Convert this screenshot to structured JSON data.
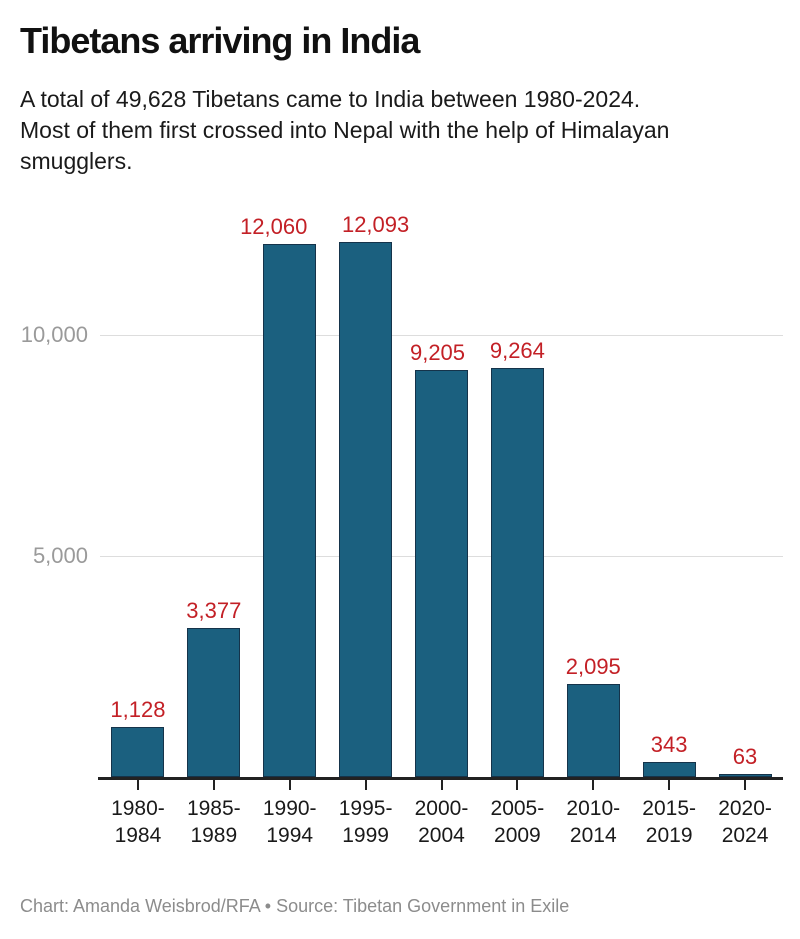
{
  "header": {
    "title": "Tibetans arriving in India",
    "subtitle": "A total of 49,628 Tibetans came to India between 1980-2024.\nMost of them first crossed into Nepal with the help of Himalayan\nsmugglers."
  },
  "footer": {
    "credit": "Chart: Amanda Weisbrod/RFA • Source: Tibetan Government in Exile"
  },
  "chart_data": {
    "type": "bar",
    "title": "Tibetans arriving in India",
    "subtitle": "A total of 49,628 Tibetans came to India between 1980-2024. Most of them first crossed into Nepal with the help of Himalayan smugglers.",
    "categories": [
      "1980-\n1984",
      "1985-\n1989",
      "1990-\n1994",
      "1995-\n1999",
      "2000-\n2004",
      "2005-\n2009",
      "2010-\n2014",
      "2015-\n2019",
      "2020-\n2024"
    ],
    "values": [
      1128,
      3377,
      12060,
      12093,
      9205,
      9264,
      2095,
      343,
      63
    ],
    "value_labels": [
      "1,128",
      "3,377",
      "12,060",
      "12,093",
      "9,205",
      "9,264",
      "2,095",
      "343",
      "63"
    ],
    "total": "49,628",
    "y_ticks": [
      {
        "value": 5000,
        "label": "5,000"
      },
      {
        "value": 10000,
        "label": "10,000"
      }
    ],
    "xlabel": "",
    "ylabel": "",
    "ylim": [
      0,
      12500
    ],
    "grid": "horizontal",
    "legend": "none",
    "colors": {
      "bar_fill": "#1b607f",
      "bar_border": "#15334a",
      "value_label": "#c32026",
      "gridline": "#dddddd",
      "axis": "#222222",
      "ytick_label": "#9a9a9a",
      "xtick_label": "#1a1a1a",
      "title": "#111111",
      "subtitle": "#1a1a1a",
      "footer": "#8c8c8c"
    }
  }
}
